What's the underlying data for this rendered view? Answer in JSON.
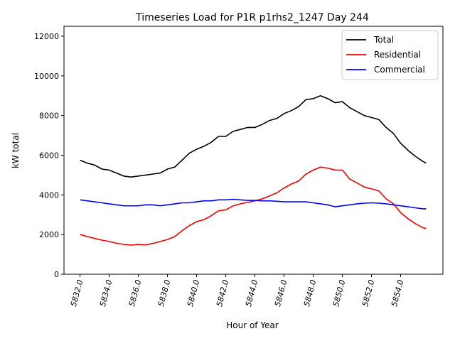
{
  "chart_data": {
    "type": "line",
    "title": "Timeseries Load for P1R p1rhs2_1247  Day 244",
    "xlabel": "Hour of Year",
    "ylabel": "kW total",
    "xlim": [
      5830.9,
      5856.9
    ],
    "ylim": [
      0,
      12500
    ],
    "xticks": [
      5832,
      5834,
      5836,
      5838,
      5840,
      5842,
      5844,
      5846,
      5848,
      5850,
      5852,
      5854
    ],
    "xtick_labels": [
      "5832.0",
      "5834.0",
      "5836.0",
      "5838.0",
      "5840.0",
      "5842.0",
      "5844.0",
      "5846.0",
      "5848.0",
      "5850.0",
      "5852.0",
      "5854.0"
    ],
    "yticks": [
      0,
      2000,
      4000,
      6000,
      8000,
      10000,
      12000
    ],
    "ytick_labels": [
      "0",
      "2000",
      "4000",
      "6000",
      "8000",
      "10000",
      "12000"
    ],
    "grid": false,
    "legend_placement": "top-right",
    "x_start": 5832,
    "x_step": 0.5,
    "series": [
      {
        "name": "Total",
        "color": "#000000",
        "values": [
          5750,
          5600,
          5500,
          5300,
          5250,
          5100,
          4950,
          4900,
          4950,
          5000,
          5050,
          5100,
          5300,
          5400,
          5750,
          6100,
          6300,
          6450,
          6650,
          6950,
          6950,
          7200,
          7300,
          7400,
          7400,
          7550,
          7750,
          7850,
          8100,
          8250,
          8450,
          8800,
          8850,
          9000,
          8850,
          8650,
          8700,
          8400,
          8200,
          8000,
          7900,
          7800,
          7400,
          7100,
          6600,
          6250,
          5950,
          5700,
          5600
        ]
      },
      {
        "name": "Residential",
        "color": "#ff0000",
        "values": [
          2000,
          1900,
          1800,
          1720,
          1650,
          1560,
          1500,
          1470,
          1500,
          1480,
          1550,
          1650,
          1750,
          1900,
          2200,
          2450,
          2650,
          2750,
          2950,
          3200,
          3250,
          3450,
          3550,
          3620,
          3700,
          3800,
          3950,
          4100,
          4350,
          4550,
          4700,
          5050,
          5250,
          5400,
          5350,
          5250,
          5250,
          4800,
          4600,
          4400,
          4300,
          4200,
          3800,
          3550,
          3100,
          2800,
          2550,
          2350,
          2300
        ]
      },
      {
        "name": "Commercial",
        "color": "#0000ff",
        "values": [
          3750,
          3700,
          3650,
          3600,
          3550,
          3500,
          3450,
          3450,
          3450,
          3500,
          3500,
          3450,
          3500,
          3550,
          3600,
          3600,
          3650,
          3700,
          3700,
          3750,
          3750,
          3780,
          3750,
          3720,
          3720,
          3700,
          3700,
          3680,
          3650,
          3650,
          3650,
          3650,
          3600,
          3550,
          3500,
          3400,
          3450,
          3500,
          3550,
          3580,
          3600,
          3580,
          3550,
          3500,
          3450,
          3400,
          3350,
          3300,
          3300
        ]
      }
    ]
  }
}
